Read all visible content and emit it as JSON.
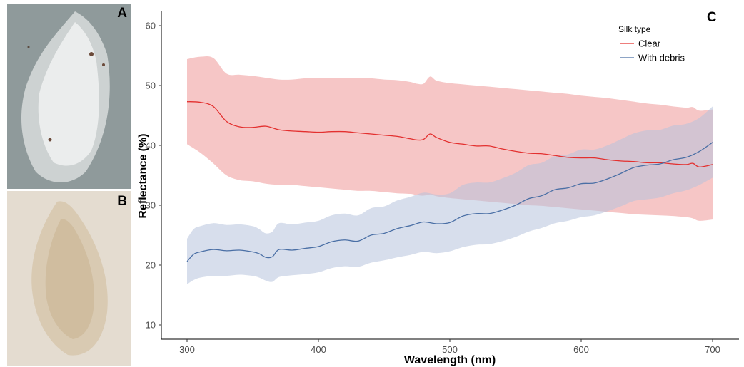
{
  "panels": {
    "a_label": "A",
    "b_label": "B",
    "c_label": "C"
  },
  "colors": {
    "clear_line": "#e3302f",
    "clear_band": "#f3b3b3",
    "debris_line": "#4a6fa5",
    "debris_band": "#b6c3dc",
    "photo_a_bg": "#8f9a9b",
    "photo_b_bg": "#e4dcd0"
  },
  "chart_data": {
    "type": "line",
    "xlabel": "Wavelength (nm)",
    "ylabel": "Reflectance (%)",
    "xlim": [
      300,
      700
    ],
    "ylim": [
      10,
      60
    ],
    "xticks": [
      300,
      400,
      500,
      600,
      700
    ],
    "yticks": [
      10,
      20,
      30,
      40,
      50,
      60
    ],
    "grid": false,
    "legend_title": "Silk type",
    "legend_position": "top-right",
    "series": [
      {
        "name": "Clear",
        "color": "#e3302f",
        "x": [
          300,
          310,
          320,
          330,
          340,
          350,
          360,
          370,
          380,
          390,
          400,
          410,
          420,
          430,
          440,
          450,
          460,
          470,
          475,
          480,
          485,
          490,
          500,
          510,
          520,
          530,
          540,
          550,
          560,
          570,
          580,
          590,
          600,
          610,
          620,
          630,
          640,
          650,
          660,
          670,
          680,
          685,
          690,
          700
        ],
        "y": [
          47.3,
          47.2,
          46.5,
          44.0,
          43.1,
          43.0,
          43.2,
          42.6,
          42.4,
          42.3,
          42.2,
          42.3,
          42.3,
          42.1,
          41.9,
          41.7,
          41.5,
          41.1,
          40.9,
          41.0,
          41.9,
          41.3,
          40.5,
          40.2,
          39.9,
          39.9,
          39.4,
          39.0,
          38.7,
          38.6,
          38.3,
          38.0,
          37.9,
          37.9,
          37.6,
          37.4,
          37.3,
          37.1,
          37.1,
          36.9,
          36.8,
          37.0,
          36.4,
          36.8
        ],
        "lower": [
          40.2,
          38.8,
          37.0,
          35.0,
          34.2,
          34.0,
          33.6,
          33.4,
          33.4,
          33.2,
          33.0,
          32.8,
          32.6,
          32.4,
          32.4,
          32.2,
          32.0,
          31.9,
          31.7,
          31.6,
          31.8,
          31.5,
          31.2,
          31.0,
          30.8,
          30.6,
          30.4,
          30.2,
          30.0,
          29.9,
          29.7,
          29.5,
          29.3,
          29.1,
          28.9,
          28.7,
          28.5,
          28.4,
          28.3,
          28.2,
          28.0,
          27.8,
          27.4,
          27.6
        ],
        "upper": [
          54.4,
          54.8,
          54.6,
          52.0,
          51.8,
          51.6,
          51.3,
          51.0,
          51.0,
          51.2,
          51.3,
          51.2,
          51.2,
          51.3,
          51.2,
          51.0,
          50.9,
          50.6,
          50.3,
          50.3,
          51.5,
          50.8,
          50.4,
          50.2,
          50.0,
          49.8,
          49.6,
          49.4,
          49.2,
          49.0,
          48.8,
          48.6,
          48.3,
          48.1,
          47.9,
          47.6,
          47.3,
          47.0,
          46.8,
          46.5,
          46.3,
          46.4,
          45.8,
          46.0
        ]
      },
      {
        "name": "With debris",
        "color": "#4a6fa5",
        "x": [
          300,
          305,
          310,
          320,
          330,
          340,
          350,
          355,
          360,
          365,
          370,
          380,
          390,
          400,
          410,
          420,
          430,
          440,
          450,
          460,
          470,
          480,
          490,
          500,
          510,
          520,
          530,
          540,
          550,
          560,
          570,
          580,
          590,
          600,
          610,
          620,
          630,
          640,
          650,
          660,
          670,
          680,
          690,
          700
        ],
        "y": [
          20.6,
          21.8,
          22.2,
          22.6,
          22.4,
          22.5,
          22.2,
          21.9,
          21.3,
          21.4,
          22.6,
          22.5,
          22.8,
          23.1,
          23.9,
          24.2,
          24.0,
          25.0,
          25.3,
          26.1,
          26.6,
          27.2,
          26.9,
          27.1,
          28.2,
          28.6,
          28.6,
          29.2,
          30.0,
          31.1,
          31.6,
          32.6,
          32.9,
          33.6,
          33.7,
          34.4,
          35.3,
          36.3,
          36.7,
          36.9,
          37.6,
          38.0,
          39.0,
          40.5
        ],
        "lower": [
          16.8,
          17.5,
          17.9,
          18.2,
          18.2,
          18.4,
          18.2,
          17.9,
          17.4,
          17.2,
          18.0,
          18.3,
          18.5,
          18.8,
          19.5,
          19.8,
          19.7,
          20.4,
          20.8,
          21.3,
          21.7,
          22.2,
          22.0,
          22.3,
          23.0,
          23.4,
          23.5,
          24.0,
          24.7,
          25.6,
          26.2,
          27.0,
          27.4,
          28.0,
          28.3,
          29.0,
          29.8,
          30.7,
          31.0,
          31.3,
          32.0,
          32.5,
          33.4,
          34.6
        ],
        "upper": [
          24.4,
          26.0,
          26.5,
          27.0,
          26.7,
          26.8,
          26.5,
          26.0,
          25.3,
          25.6,
          27.0,
          26.8,
          27.1,
          27.4,
          28.3,
          28.6,
          28.3,
          29.5,
          29.8,
          30.8,
          31.4,
          32.1,
          31.8,
          32.0,
          33.4,
          33.8,
          33.8,
          34.5,
          35.4,
          36.7,
          37.1,
          38.2,
          38.5,
          39.3,
          39.3,
          40.0,
          41.0,
          42.0,
          42.5,
          42.6,
          43.3,
          43.6,
          44.6,
          46.5
        ]
      }
    ]
  }
}
